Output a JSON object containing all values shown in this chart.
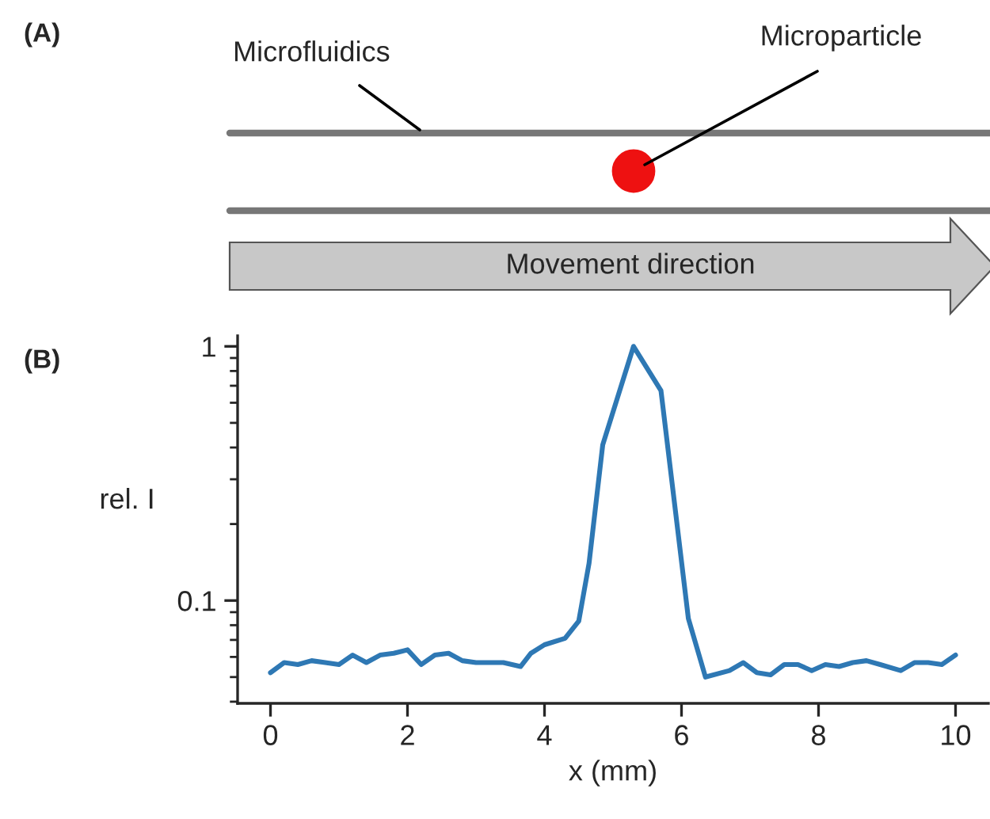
{
  "chart_data": [
    {
      "type": "other",
      "title": "(A)",
      "annotations": [
        "Microfluidics",
        "Microparticle",
        "Movement direction"
      ]
    },
    {
      "type": "line",
      "title": "(B)",
      "xlabel": "x (mm)",
      "ylabel": "rel. I",
      "log": true,
      "grid": false,
      "marker": "none",
      "line_style": "solid",
      "xlim": [
        -0.48,
        10.48
      ],
      "xticks": [
        0,
        2,
        4,
        6,
        8,
        10
      ],
      "ylim": [
        0.0394,
        1.1
      ],
      "yticks": [
        0.1,
        1
      ],
      "x": [
        0,
        0.2,
        0.4,
        0.6,
        0.8,
        1.0,
        1.2,
        1.4,
        1.6,
        1.8,
        2.0,
        2.2,
        2.4,
        2.6,
        2.8,
        3.0,
        3.2,
        3.4,
        3.65,
        3.8,
        4.0,
        4.3,
        4.5,
        4.65,
        4.85,
        5.3,
        5.7,
        6.1,
        6.35,
        6.7,
        6.9,
        7.1,
        7.3,
        7.5,
        7.7,
        7.9,
        8.1,
        8.3,
        8.5,
        8.7,
        8.9,
        9.2,
        9.4,
        9.6,
        9.8,
        10.0
      ],
      "series": [
        {
          "color": "#2e78b4",
          "values": [
            0.052,
            0.057,
            0.056,
            0.058,
            0.057,
            0.056,
            0.061,
            0.057,
            0.061,
            0.062,
            0.064,
            0.056,
            0.061,
            0.062,
            0.058,
            0.057,
            0.057,
            0.057,
            0.055,
            0.062,
            0.067,
            0.071,
            0.083,
            0.14,
            0.41,
            1.0,
            0.67,
            0.085,
            0.05,
            0.053,
            0.057,
            0.052,
            0.051,
            0.056,
            0.056,
            0.053,
            0.056,
            0.055,
            0.057,
            0.058,
            0.056,
            0.053,
            0.057,
            0.057,
            0.056,
            0.061
          ]
        }
      ]
    }
  ]
}
